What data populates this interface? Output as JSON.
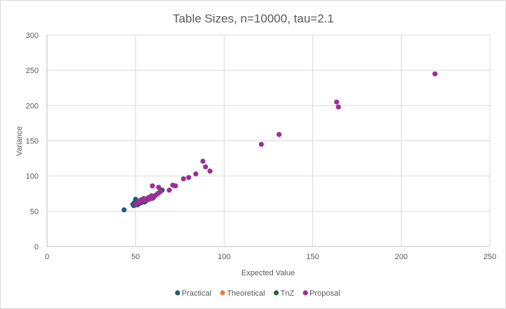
{
  "chart_data": {
    "type": "scatter",
    "title": "Table Sizes, n=10000, tau=2.1",
    "xlabel": "Expected Value",
    "ylabel": "Variance",
    "xlim": [
      0,
      250
    ],
    "ylim": [
      0,
      300
    ],
    "xticks": [
      0,
      50,
      100,
      150,
      200,
      250
    ],
    "yticks": [
      0,
      50,
      100,
      150,
      200,
      250,
      300
    ],
    "grid": true,
    "legend_position": "bottom",
    "series": [
      {
        "name": "Practical",
        "color": "#1f5b7a",
        "points": [
          [
            43.5,
            52
          ],
          [
            48.5,
            60
          ],
          [
            49,
            58
          ],
          [
            49.5,
            63
          ],
          [
            50,
            67
          ],
          [
            50.5,
            61
          ],
          [
            51,
            59
          ],
          [
            51.5,
            63
          ],
          [
            52,
            61
          ],
          [
            52.5,
            65
          ],
          [
            53,
            62
          ],
          [
            53.5,
            66
          ],
          [
            54,
            64
          ],
          [
            54.5,
            67
          ],
          [
            55,
            63
          ],
          [
            55.5,
            66
          ],
          [
            56,
            65
          ],
          [
            56.5,
            68
          ],
          [
            57,
            67
          ],
          [
            58,
            70
          ],
          [
            59,
            68
          ],
          [
            60,
            71
          ],
          [
            61,
            72
          ],
          [
            62,
            74
          ],
          [
            63,
            76
          ],
          [
            64,
            78
          ],
          [
            65,
            80
          ]
        ]
      },
      {
        "name": "Theoretical",
        "color": "#ed7d31",
        "points": []
      },
      {
        "name": "TnZ",
        "color": "#1e6b2b",
        "points": []
      },
      {
        "name": "Proposal",
        "color": "#9b2f96",
        "points": [
          [
            50,
            60
          ],
          [
            51,
            62
          ],
          [
            52,
            64
          ],
          [
            53,
            66
          ],
          [
            54,
            65
          ],
          [
            54.5,
            68
          ],
          [
            55,
            67
          ],
          [
            56,
            66
          ],
          [
            57,
            69
          ],
          [
            57.5,
            67
          ],
          [
            58,
            70
          ],
          [
            58.5,
            68
          ],
          [
            59,
            72
          ],
          [
            59.5,
            86
          ],
          [
            60,
            69
          ],
          [
            61,
            72
          ],
          [
            62,
            74
          ],
          [
            63,
            84
          ],
          [
            64,
            78
          ],
          [
            69,
            80
          ],
          [
            71,
            87
          ],
          [
            72.5,
            86
          ],
          [
            77,
            96
          ],
          [
            80,
            98
          ],
          [
            84,
            103
          ],
          [
            88,
            121
          ],
          [
            89.5,
            113
          ],
          [
            92,
            107
          ],
          [
            121,
            145
          ],
          [
            131,
            159
          ],
          [
            163.5,
            205
          ],
          [
            164.5,
            198
          ],
          [
            219,
            245
          ]
        ]
      }
    ]
  }
}
